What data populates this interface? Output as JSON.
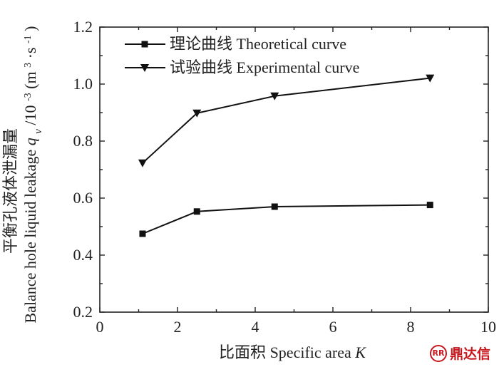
{
  "chart_data": {
    "type": "line",
    "title": "",
    "xlabel": {
      "zh": "比面积",
      "en": "Specific area",
      "var": "K"
    },
    "ylabel": {
      "zh": "平衡孔液体泄漏量",
      "en": "Balance hole liquid leakage",
      "var": "q",
      "sub": "v",
      "unit_prefix": "/10",
      "unit_exp": "-3",
      "unit_open": "(m",
      "unit_m_exp": "3",
      "unit_mid": "·s",
      "unit_s_exp": "-1",
      "unit_close": ")"
    },
    "xlim": [
      0,
      10
    ],
    "ylim": [
      0.2,
      1.2
    ],
    "xticks": [
      "0",
      "2",
      "4",
      "6",
      "8",
      "10"
    ],
    "yticks": [
      "0.2",
      "0.4",
      "0.6",
      "0.8",
      "1.0",
      "1.2"
    ],
    "grid": false,
    "legend_position": "top-left",
    "series": [
      {
        "name": "理论曲线 Theoretical curve",
        "marker": "square",
        "x": [
          1.1,
          2.5,
          4.5,
          8.5
        ],
        "y": [
          0.475,
          0.553,
          0.57,
          0.576
        ]
      },
      {
        "name": "试验曲线 Experimental curve",
        "marker": "triangle-down",
        "x": [
          1.1,
          2.5,
          4.5,
          8.5
        ],
        "y": [
          0.723,
          0.898,
          0.958,
          1.021
        ]
      }
    ]
  },
  "logo": {
    "text": "鼎达信",
    "badge": "RR"
  }
}
